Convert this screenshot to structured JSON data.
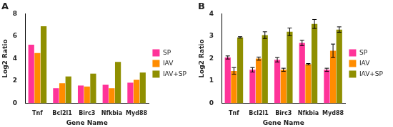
{
  "chart_data": [
    {
      "type": "bar",
      "title": "A",
      "x_label": "Gene Name",
      "y_label": "Log2 Ratio",
      "categories": [
        "Tnf",
        "Bcl2l1",
        "Birc3",
        "Nfkbia",
        "Myd88"
      ],
      "series": [
        {
          "name": "SP",
          "color": "#ff3399",
          "values": [
            5.25,
            1.35,
            1.6,
            1.65,
            1.85
          ]
        },
        {
          "name": "IAV",
          "color": "#ff8c00",
          "values": [
            4.5,
            1.8,
            1.5,
            1.35,
            2.1
          ]
        },
        {
          "name": "IAV+SP",
          "color": "#8f8f00",
          "values": [
            6.9,
            2.4,
            2.65,
            3.7,
            2.75
          ]
        }
      ],
      "ylim": [
        0,
        8
      ],
      "yticks": [
        0,
        2,
        4,
        6,
        8
      ],
      "grid": false,
      "legend": "right"
    },
    {
      "type": "bar",
      "title": "B",
      "x_label": "Gene Name",
      "y_label": "Log2 Ratio",
      "categories": [
        "Tnf",
        "Bcl2l1",
        "Birc3",
        "Nfkbia",
        "Myd88"
      ],
      "series": [
        {
          "name": "SP",
          "color": "#ff3399",
          "values": [
            2.05,
            1.5,
            1.95,
            2.7,
            1.5
          ],
          "errors": [
            0.07,
            0.1,
            0.1,
            0.12,
            0.07
          ]
        },
        {
          "name": "IAV",
          "color": "#ff8c00",
          "values": [
            1.45,
            2.0,
            1.5,
            1.75,
            2.35
          ],
          "errors": [
            0.15,
            0.07,
            0.07,
            0.03,
            0.3
          ]
        },
        {
          "name": "IAV+SP",
          "color": "#8f8f00",
          "values": [
            2.95,
            3.05,
            3.2,
            3.55,
            3.3
          ],
          "errors": [
            0.03,
            0.15,
            0.17,
            0.2,
            0.12
          ]
        }
      ],
      "ylim": [
        0,
        4
      ],
      "yticks": [
        0,
        1,
        2,
        3,
        4
      ],
      "grid": false,
      "legend": "right"
    }
  ]
}
